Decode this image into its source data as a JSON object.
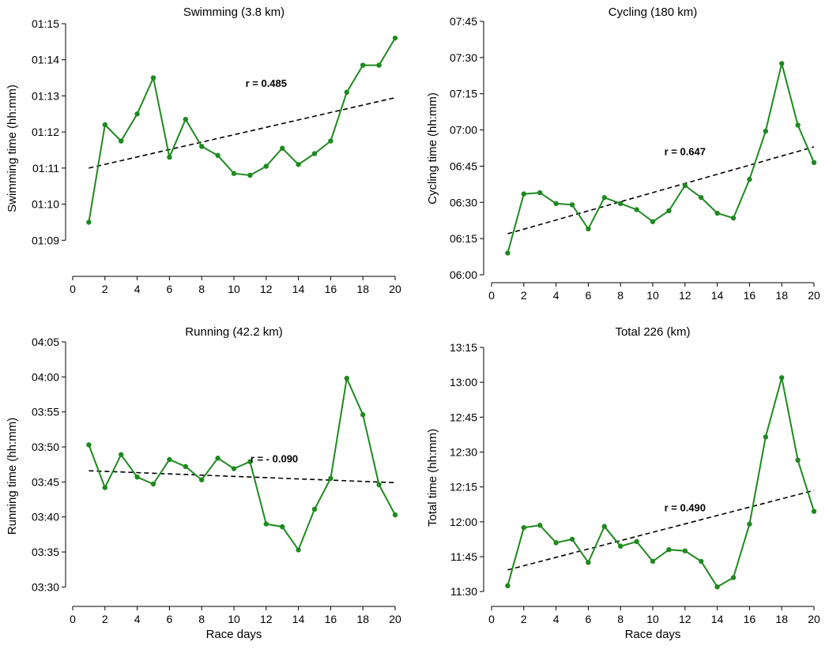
{
  "figure": {
    "xlabel": "Race days"
  },
  "colors": {
    "series": "#1e8a1e",
    "trend": "#000000",
    "axis": "#000000"
  },
  "chart_data": [
    {
      "type": "line",
      "title": "Swimming (3.8 km)",
      "xlabel": "",
      "ylabel": "Swimming time (hh:mm)",
      "xlim": [
        0,
        20
      ],
      "ylim": [
        548,
        555
      ],
      "xticks": [
        0,
        2,
        4,
        6,
        8,
        10,
        12,
        14,
        16,
        18,
        20
      ],
      "ytick_values": [
        549,
        550,
        551,
        552,
        553,
        554,
        555
      ],
      "ytick_labels": [
        "01:09",
        "01:10",
        "01:11",
        "01:12",
        "01:13",
        "01:14",
        "01:15"
      ],
      "x": [
        1,
        2,
        3,
        4,
        5,
        6,
        7,
        8,
        9,
        10,
        11,
        12,
        13,
        14,
        15,
        16,
        17,
        18,
        19,
        20
      ],
      "values": [
        549.5,
        552.2,
        551.75,
        552.5,
        553.5,
        551.3,
        552.35,
        551.6,
        551.35,
        550.85,
        550.8,
        551.05,
        551.55,
        551.1,
        551.4,
        551.75,
        553.1,
        553.85,
        553.85,
        554.6
      ],
      "trend": {
        "x": [
          1,
          20
        ],
        "y": [
          551.0,
          552.95
        ]
      },
      "r_label": "r = 0.485",
      "r_pos": {
        "x": 12,
        "y": 553.25
      }
    },
    {
      "type": "line",
      "title": "Cycling (180 km)",
      "xlabel": "",
      "ylabel": "Cycling time (hh:mm)",
      "xlim": [
        0,
        20
      ],
      "ylim": [
        360,
        465
      ],
      "xticks": [
        0,
        2,
        4,
        6,
        8,
        10,
        12,
        14,
        16,
        18,
        20
      ],
      "ytick_values": [
        360,
        375,
        390,
        405,
        420,
        435,
        450,
        465
      ],
      "ytick_labels": [
        "06:00",
        "06:15",
        "06:30",
        "06:45",
        "07:00",
        "07:15",
        "07:30",
        "07:45"
      ],
      "x": [
        1,
        2,
        3,
        4,
        5,
        6,
        7,
        8,
        9,
        10,
        11,
        12,
        13,
        14,
        15,
        16,
        17,
        18,
        19,
        20
      ],
      "values": [
        369,
        393.5,
        394,
        389.5,
        389,
        379,
        392,
        389.5,
        387,
        382,
        386.5,
        397,
        392,
        385.5,
        383.5,
        399.5,
        419.5,
        447.5,
        422,
        406.5
      ],
      "trend": {
        "x": [
          1,
          20
        ],
        "y": [
          377,
          413
        ]
      },
      "r_label": "r = 0.647",
      "r_pos": {
        "x": 12,
        "y": 409.5
      }
    },
    {
      "type": "line",
      "title": "Running (42.2 km)",
      "xlabel": "Race days",
      "ylabel": "Running time (hh:mm)",
      "xlim": [
        0,
        20
      ],
      "ylim": [
        207,
        245
      ],
      "xticks": [
        0,
        2,
        4,
        6,
        8,
        10,
        12,
        14,
        16,
        18,
        20
      ],
      "ytick_values": [
        210,
        215,
        220,
        225,
        230,
        235,
        240,
        245
      ],
      "ytick_labels": [
        "03:30",
        "03:35",
        "03:40",
        "03:45",
        "03:50",
        "03:55",
        "04:00",
        "04:05"
      ],
      "x": [
        1,
        2,
        3,
        4,
        5,
        6,
        7,
        8,
        9,
        10,
        11,
        12,
        13,
        14,
        15,
        16,
        17,
        18,
        19,
        20
      ],
      "values": [
        230.3,
        224.2,
        228.9,
        225.7,
        224.7,
        228.2,
        227.2,
        225.3,
        228.4,
        226.9,
        227.9,
        219,
        218.6,
        215.3,
        221.1,
        225.5,
        239.8,
        234.6,
        224.6,
        220.3
      ],
      "trend": {
        "x": [
          1,
          20
        ],
        "y": [
          226.6,
          224.9
        ]
      },
      "r_label": "r = - 0.090",
      "r_pos": {
        "x": 12.5,
        "y": 227.8
      }
    },
    {
      "type": "line",
      "title": "Total 226 (km)",
      "xlabel": "Race days",
      "ylabel": "Total time (hh:mm)",
      "xlim": [
        0,
        20
      ],
      "ylim": [
        687,
        795
      ],
      "xticks": [
        0,
        2,
        4,
        6,
        8,
        10,
        12,
        14,
        16,
        18,
        20
      ],
      "ytick_values": [
        690,
        705,
        720,
        735,
        750,
        765,
        780,
        795
      ],
      "ytick_labels": [
        "11:30",
        "11:45",
        "12:00",
        "12:15",
        "12:30",
        "12:45",
        "13:00",
        "13:15"
      ],
      "x": [
        1,
        2,
        3,
        4,
        5,
        6,
        7,
        8,
        9,
        10,
        11,
        12,
        13,
        14,
        15,
        16,
        17,
        18,
        19,
        20
      ],
      "values": [
        692.5,
        717.5,
        718.5,
        711,
        712.5,
        702.5,
        718,
        709.5,
        711.5,
        703,
        708,
        707.5,
        703,
        692,
        696,
        719,
        756.5,
        782,
        746.5,
        724.5
      ],
      "trend": {
        "x": [
          1,
          20
        ],
        "y": [
          699.3,
          733.5
        ]
      },
      "r_label": "r = 0.490",
      "r_pos": {
        "x": 12,
        "y": 724.5
      }
    }
  ]
}
